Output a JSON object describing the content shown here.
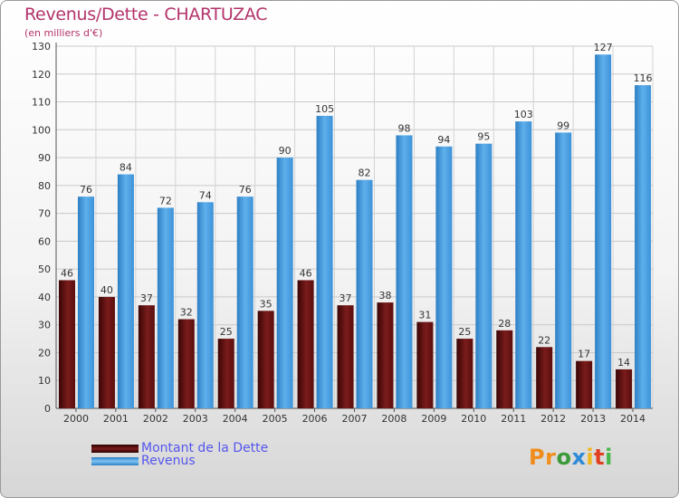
{
  "header": {
    "title": "Revenus/Dette - CHARTUZAC",
    "subtitle": "(en milliers d'€)"
  },
  "chart_data": {
    "type": "bar",
    "title": "Revenus/Dette - CHARTUZAC",
    "subtitle": "(en milliers d'€)",
    "categories": [
      "2000",
      "2001",
      "2002",
      "2003",
      "2004",
      "2005",
      "2006",
      "2007",
      "2008",
      "2009",
      "2010",
      "2011",
      "2012",
      "2013",
      "2014"
    ],
    "series": [
      {
        "name": "Montant de la Dette",
        "color": "#6e1414",
        "values": [
          46,
          40,
          37,
          32,
          25,
          35,
          46,
          37,
          38,
          31,
          25,
          28,
          22,
          17,
          14
        ]
      },
      {
        "name": "Revenus",
        "color": "#4a9fe0",
        "values": [
          76,
          84,
          72,
          74,
          76,
          90,
          105,
          82,
          98,
          94,
          95,
          103,
          99,
          127,
          116
        ]
      }
    ],
    "yticks": [
      0,
      10,
      20,
      30,
      40,
      50,
      60,
      70,
      80,
      90,
      100,
      110,
      120,
      130
    ],
    "ylim": [
      0,
      130
    ],
    "grid": true,
    "legend": "bottom-left",
    "data_labels": true
  },
  "legend": {
    "items": [
      {
        "label": "Montant de la Dette",
        "color": "#6e1414"
      },
      {
        "label": "Revenus",
        "color": "#4a9fe0"
      }
    ]
  },
  "logo": {
    "text": "Proxiti",
    "letters": [
      {
        "ch": "P",
        "color": "#ef8c1a"
      },
      {
        "ch": "r",
        "color": "#f08f1c"
      },
      {
        "ch": "o",
        "color": "#3a9a3a"
      },
      {
        "ch": "x",
        "color": "#2c8ad8"
      },
      {
        "ch": "i",
        "color": "#f0b81c"
      },
      {
        "ch": "t",
        "color": "#e04020"
      },
      {
        "ch": "i",
        "color": "#49b84a"
      }
    ]
  }
}
